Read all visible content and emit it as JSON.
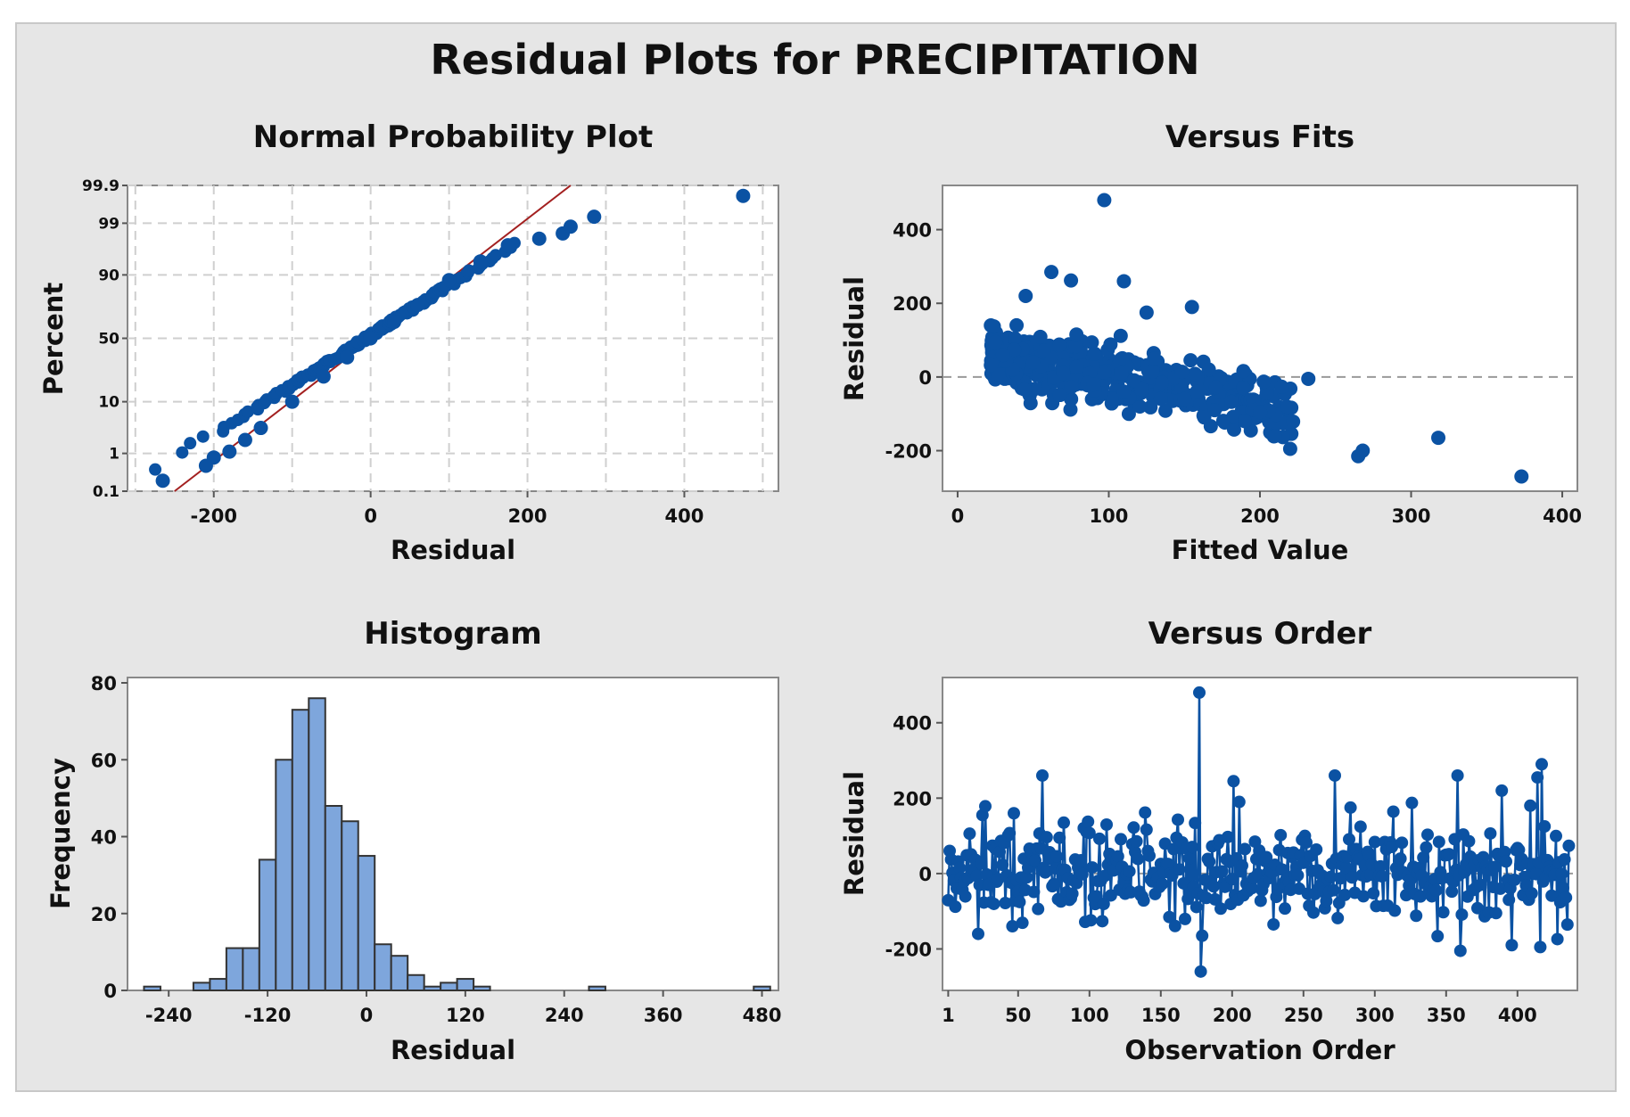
{
  "title": "Residual Plots for PRECIPITATION",
  "colors": {
    "point": "#0b52a3",
    "fitline": "#a32020",
    "bar": "#7ea6dc",
    "bar_edge": "#333333",
    "grid": "#cfcfcf",
    "refline": "#999999",
    "panel_bg": "#e6e6e6",
    "plot_bg": "#ffffff"
  },
  "chart_data": [
    {
      "type": "scatter",
      "title": "Normal Probability Plot",
      "xlabel": "Residual",
      "ylabel": "Percent",
      "xlim": [
        -310,
        520
      ],
      "xticks": [
        -200,
        0,
        200,
        400
      ],
      "y_scale": "normal-probability",
      "yticks": [
        0.1,
        1,
        10,
        50,
        90,
        99,
        99.9
      ],
      "grid": true,
      "fit_line": {
        "x": [
          -250,
          255
        ],
        "percent": [
          0.1,
          99.9
        ]
      },
      "sample_points": [
        {
          "x": -265,
          "percent": 0.2
        },
        {
          "x": -210,
          "percent": 0.5
        },
        {
          "x": -200,
          "percent": 0.8
        },
        {
          "x": -180,
          "percent": 1.1
        },
        {
          "x": -160,
          "percent": 2
        },
        {
          "x": -140,
          "percent": 3.5
        },
        {
          "x": -100,
          "percent": 10
        },
        {
          "x": -60,
          "percent": 22
        },
        {
          "x": -30,
          "percent": 35
        },
        {
          "x": 0,
          "percent": 50
        },
        {
          "x": 30,
          "percent": 63
        },
        {
          "x": 60,
          "percent": 75
        },
        {
          "x": 100,
          "percent": 88
        },
        {
          "x": 140,
          "percent": 94
        },
        {
          "x": 175,
          "percent": 97
        },
        {
          "x": 215,
          "percent": 97.8
        },
        {
          "x": 245,
          "percent": 98.3
        },
        {
          "x": 255,
          "percent": 98.8
        },
        {
          "x": 285,
          "percent": 99.3
        },
        {
          "x": 475,
          "percent": 99.8
        }
      ]
    },
    {
      "type": "scatter",
      "title": "Versus Fits",
      "xlabel": "Fitted Value",
      "ylabel": "Residual",
      "xlim": [
        -10,
        410
      ],
      "ylim": [
        -310,
        520
      ],
      "xticks": [
        0,
        100,
        200,
        300,
        400
      ],
      "yticks": [
        -200,
        0,
        200,
        400
      ],
      "reference_line_y": 0,
      "sample_points": [
        {
          "x": 97,
          "y": 480
        },
        {
          "x": 62,
          "y": 285
        },
        {
          "x": 110,
          "y": 260
        },
        {
          "x": 75,
          "y": 262
        },
        {
          "x": 155,
          "y": 190
        },
        {
          "x": 45,
          "y": 220
        },
        {
          "x": 125,
          "y": 175
        },
        {
          "x": 22,
          "y": 140
        },
        {
          "x": 30,
          "y": 60
        },
        {
          "x": 50,
          "y": 40
        },
        {
          "x": 70,
          "y": 10
        },
        {
          "x": 90,
          "y": -20
        },
        {
          "x": 110,
          "y": -40
        },
        {
          "x": 130,
          "y": 50
        },
        {
          "x": 150,
          "y": -60
        },
        {
          "x": 170,
          "y": -90
        },
        {
          "x": 190,
          "y": -120
        },
        {
          "x": 210,
          "y": -160
        },
        {
          "x": 220,
          "y": -195
        },
        {
          "x": 232,
          "y": -5
        },
        {
          "x": 265,
          "y": -215
        },
        {
          "x": 268,
          "y": -200
        },
        {
          "x": 318,
          "y": -165
        },
        {
          "x": 373,
          "y": -270
        }
      ]
    },
    {
      "type": "bar",
      "title": "Histogram",
      "xlabel": "Residual",
      "ylabel": "Frequency",
      "xlim": [
        -290,
        500
      ],
      "ylim": [
        0,
        80
      ],
      "xticks": [
        -240,
        -120,
        0,
        120,
        240,
        360,
        480
      ],
      "yticks": [
        0,
        20,
        40,
        60,
        80
      ],
      "bin_width": 20,
      "bin_centers": [
        -260,
        -240,
        -220,
        -200,
        -180,
        -160,
        -140,
        -120,
        -100,
        -80,
        -60,
        -40,
        -20,
        0,
        20,
        40,
        60,
        80,
        100,
        120,
        140,
        160,
        180,
        200,
        220,
        240,
        260,
        280,
        300,
        320,
        340,
        360,
        380,
        400,
        420,
        440,
        460,
        480
      ],
      "values": [
        1,
        0,
        0,
        2,
        3,
        11,
        11,
        34,
        60,
        73,
        76,
        48,
        44,
        35,
        12,
        9,
        4,
        1,
        2,
        3,
        1,
        0,
        0,
        0,
        0,
        0,
        0,
        1,
        0,
        0,
        0,
        0,
        0,
        0,
        0,
        0,
        0,
        1
      ]
    },
    {
      "type": "line",
      "title": "Versus Order",
      "xlabel": "Observation Order",
      "ylabel": "Residual",
      "xlim": [
        -3,
        442
      ],
      "ylim": [
        -310,
        520
      ],
      "xticks": [
        1,
        50,
        100,
        150,
        200,
        250,
        300,
        350,
        400
      ],
      "yticks": [
        -200,
        0,
        200,
        400
      ],
      "n_observations": 436,
      "reference_line_y": 0,
      "sample_points": [
        {
          "x": 177,
          "y": 480
        },
        {
          "x": 178,
          "y": -260
        },
        {
          "x": 179,
          "y": -165
        },
        {
          "x": 67,
          "y": 260
        },
        {
          "x": 201,
          "y": 245
        },
        {
          "x": 272,
          "y": 260
        },
        {
          "x": 358,
          "y": 260
        },
        {
          "x": 417,
          "y": 290
        },
        {
          "x": 414,
          "y": 255
        },
        {
          "x": 360,
          "y": -205
        },
        {
          "x": 416,
          "y": -195
        },
        {
          "x": 396,
          "y": -190
        },
        {
          "x": 25,
          "y": 155
        },
        {
          "x": 47,
          "y": 160
        },
        {
          "x": 205,
          "y": 190
        },
        {
          "x": 283,
          "y": 175
        },
        {
          "x": 389,
          "y": 220
        },
        {
          "x": 409,
          "y": 180
        }
      ]
    }
  ]
}
